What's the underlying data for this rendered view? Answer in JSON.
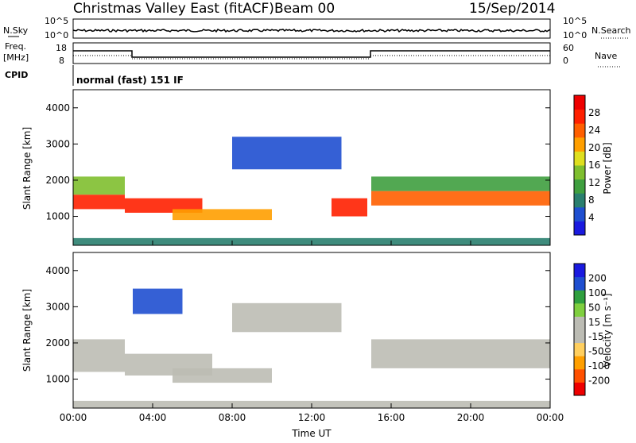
{
  "header": {
    "title": "Christmas Valley East (fitACF)",
    "beam": "Beam 00",
    "date": "15/Sep/2014"
  },
  "status_panels": {
    "nsky_label": "N.Sky",
    "nsky_ticks": [
      "10^5",
      "10^0"
    ],
    "nsearch_label": "N.Search",
    "nsearch_ticks": [
      "10^5",
      "10^0"
    ],
    "freq_label_line1": "Freq.",
    "freq_label_line2": "[MHz]",
    "freq_ticks": [
      "18",
      "8"
    ],
    "nave_label": "Nave",
    "nave_ticks": [
      "60",
      "0"
    ],
    "cpid_label": "CPID",
    "cpid_text": "normal (fast) 151 IF"
  },
  "colors": {
    "power_scale": [
      "#1a1adf",
      "#1f4fd0",
      "#2a7f6f",
      "#3f9f3f",
      "#7fbf2f",
      "#dfdf1f",
      "#ff9f00",
      "#ff5f00",
      "#ff2000",
      "#ee0000"
    ],
    "velocity_scale": [
      "#ee0000",
      "#ff5000",
      "#ff9f00",
      "#ffcf5f",
      "#bcbcb4",
      "#bcbcb4",
      "#7fcf3f",
      "#2f9f3f",
      "#1f4fd0",
      "#1a1adf"
    ],
    "ground_scatter": "#bcbcb4"
  },
  "chart_data": [
    {
      "type": "heatmap",
      "name": "power",
      "ylabel": "Slant Range [km]",
      "yticks": [
        "1000",
        "2000",
        "3000",
        "4000"
      ],
      "ylim": [
        200,
        4500
      ],
      "xlim": [
        0,
        24
      ],
      "colorbar_label": "Power [dB]",
      "colorbar_ticks": [
        "28",
        "24",
        "20",
        "16",
        "12",
        "8",
        "4"
      ],
      "colorbar_range": [
        0,
        32
      ],
      "bands": [
        {
          "t": [
            0,
            2.6
          ],
          "r": [
            1200,
            1600
          ],
          "level": 28
        },
        {
          "t": [
            0,
            2.6
          ],
          "r": [
            1600,
            2100
          ],
          "level": 14
        },
        {
          "t": [
            2.6,
            6.5
          ],
          "r": [
            1100,
            1500
          ],
          "level": 26
        },
        {
          "t": [
            5.0,
            10.0
          ],
          "r": [
            900,
            1200
          ],
          "level": 22
        },
        {
          "t": [
            8.0,
            13.5
          ],
          "r": [
            2300,
            3200
          ],
          "level": 6
        },
        {
          "t": [
            13.0,
            14.8
          ],
          "r": [
            1000,
            1500
          ],
          "level": 26
        },
        {
          "t": [
            15.0,
            24
          ],
          "r": [
            1300,
            1700
          ],
          "level": 24
        },
        {
          "t": [
            15.0,
            24
          ],
          "r": [
            1700,
            2100
          ],
          "level": 10
        },
        {
          "t": [
            0,
            24
          ],
          "r": [
            200,
            400
          ],
          "level": 8
        }
      ]
    },
    {
      "type": "heatmap",
      "name": "velocity",
      "ylabel": "Slant Range [km]",
      "yticks": [
        "1000",
        "2000",
        "3000",
        "4000"
      ],
      "ylim": [
        200,
        4500
      ],
      "xlim": [
        0,
        24
      ],
      "xlabel": "Time UT",
      "xticks": [
        "00:00",
        "04:00",
        "08:00",
        "12:00",
        "16:00",
        "20:00",
        "00:00"
      ],
      "colorbar_label": "Velocity [m s⁻¹]",
      "colorbar_ticks": [
        "200",
        "100",
        "50",
        "15",
        "-15",
        "-50",
        "-100",
        "-200"
      ],
      "colorbar_range": [
        -250,
        250
      ],
      "bands": [
        {
          "t": [
            0,
            2.6
          ],
          "r": [
            1200,
            2100
          ],
          "value": 0
        },
        {
          "t": [
            2.6,
            7.0
          ],
          "r": [
            1100,
            1700
          ],
          "value": 0
        },
        {
          "t": [
            5.0,
            10.0
          ],
          "r": [
            900,
            1300
          ],
          "value": 0
        },
        {
          "t": [
            8.0,
            13.5
          ],
          "r": [
            2300,
            3100
          ],
          "value": 0
        },
        {
          "t": [
            15.0,
            24
          ],
          "r": [
            1300,
            2100
          ],
          "value": 0
        },
        {
          "t": [
            0,
            24
          ],
          "r": [
            200,
            400
          ],
          "value": -40
        },
        {
          "t": [
            3.0,
            5.5
          ],
          "r": [
            2800,
            3500
          ],
          "value": 150
        }
      ]
    }
  ]
}
